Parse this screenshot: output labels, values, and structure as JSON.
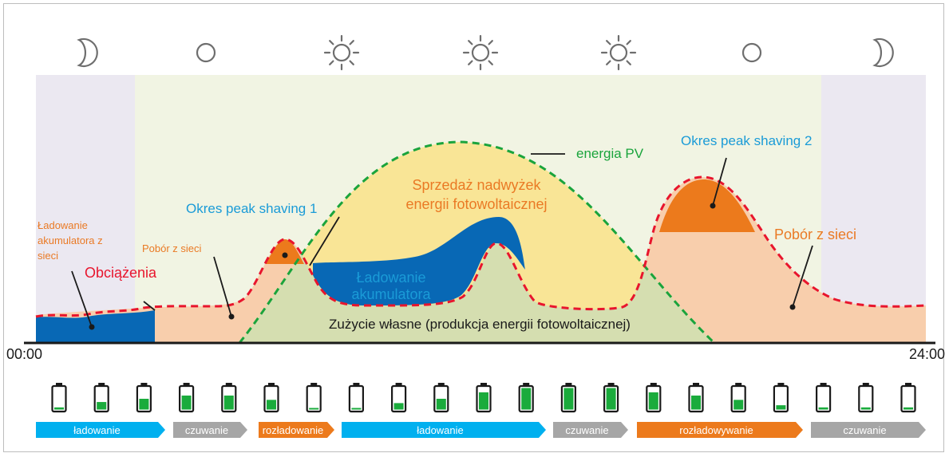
{
  "colors": {
    "night_bg": "#ebe8f1",
    "day_bg": "#f1f4e3",
    "pv_line": "#1aa43c",
    "load_line": "#e8152d",
    "battery_charge": "#0868b5",
    "peak_orange": "#ec7a1c",
    "grid_draw": "#f8ceac",
    "self_use": "#d5deb0",
    "surplus": "#f9e596",
    "label_blue": "#1a9bd7",
    "label_orange": "#ea7a25",
    "label_red": "#e8152d",
    "label_green": "#1aa43c",
    "icon_gray": "#6e6e6e",
    "bar_blue": "#00b0ef",
    "bar_gray": "#a6a6a6",
    "bar_orange": "#ec7a1c",
    "battery_fill": "#1aab3c"
  },
  "sky_icons": [
    "moon-icon",
    "circle-icon",
    "sun-icon",
    "sun-icon",
    "sun-icon",
    "circle-icon",
    "moon-icon"
  ],
  "labels": {
    "charging_from_grid": "Ładowanie akumulatora z sieci",
    "load": "Obciążenia",
    "grid_draw_small": "Pobór z sieci",
    "peak_shaving_1": "Okres peak shaving 1",
    "surplus_line1": "Sprzedaż nadwyżek",
    "surplus_line2": "energii fotowoltaicznej",
    "pv_energy": "energia PV",
    "peak_shaving_2": "Okres peak shaving 2",
    "grid_draw_large": "Pobór z sieci",
    "battery_charging_line1": "Ładowanie",
    "battery_charging_line2": "akumulatora",
    "self_consumption": "Zużycie własne (produkcja energii fotowoltaicznej)"
  },
  "time_axis": {
    "start": "00:00",
    "end": "24:00"
  },
  "battery_levels": [
    0.1,
    0.35,
    0.5,
    0.65,
    0.65,
    0.45,
    0.05,
    0.05,
    0.3,
    0.5,
    0.8,
    1.0,
    1.0,
    1.0,
    0.8,
    0.65,
    0.45,
    0.2,
    0.1,
    0.1,
    0.1
  ],
  "mode_bar": [
    {
      "label": "ładowanie",
      "color": "blue"
    },
    {
      "label": "czuwanie",
      "color": "gray"
    },
    {
      "label": "rozładowanie",
      "color": "orange"
    },
    {
      "label": "ładowanie",
      "color": "blue"
    },
    {
      "label": "czuwanie",
      "color": "gray"
    },
    {
      "label": "rozładowywanie",
      "color": "orange"
    },
    {
      "label": "czuwanie",
      "color": "gray"
    }
  ]
}
